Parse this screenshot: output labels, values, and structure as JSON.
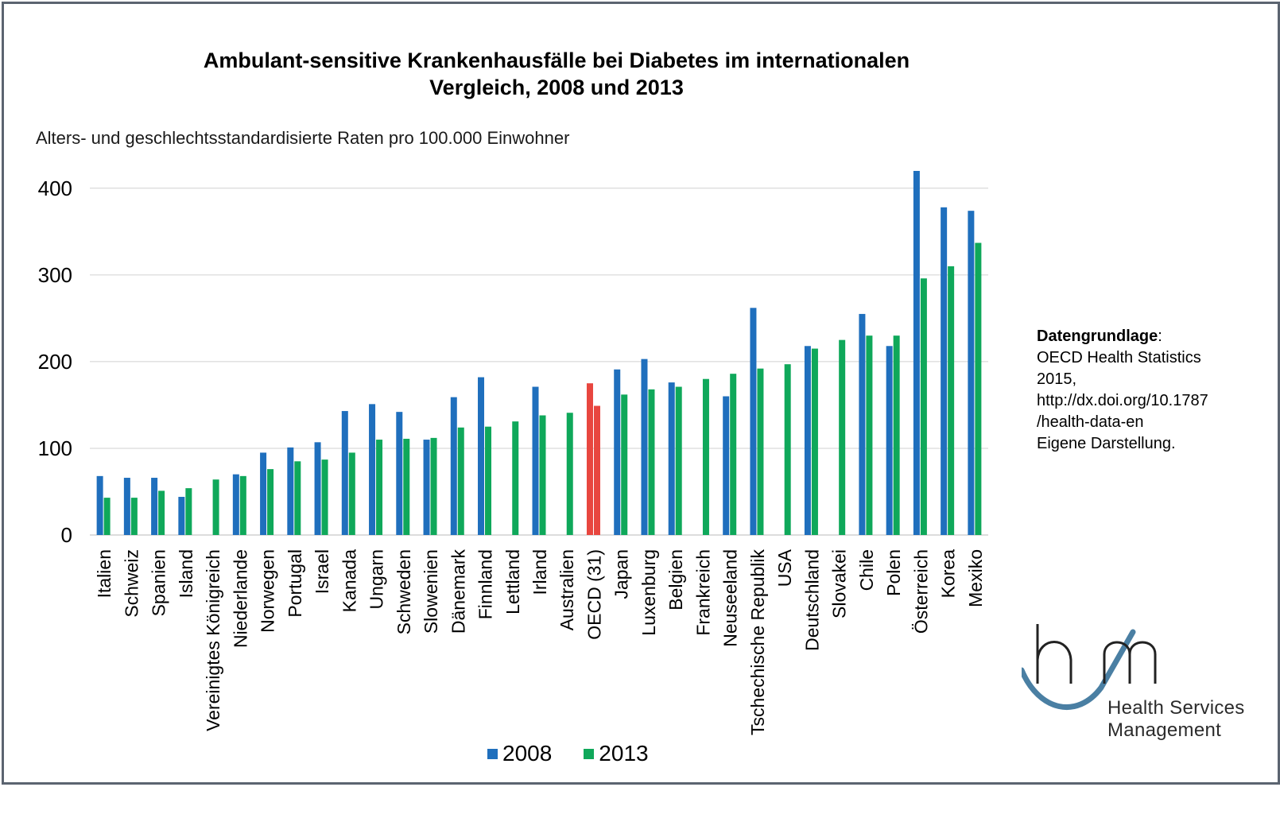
{
  "colors": {
    "series_2008": "#1f6fbd",
    "series_2013": "#0fa85a",
    "oecd_highlight": "#e8463f",
    "gridline": "#d0d0d0",
    "frame": "#5b6470",
    "logo_arc": "#4a7fa3"
  },
  "chart_data": {
    "type": "bar",
    "title": "Ambulant-sensitive Krankenhausfälle bei Diabetes im internationalen Vergleich, 2008 und 2013",
    "title_lines": [
      "Ambulant-sensitive Krankenhausfälle bei Diabetes im internationalen",
      "Vergleich, 2008 und 2013"
    ],
    "subtitle": "Alters- und geschlechtsstandardisierte Raten pro 100.000 Einwohner",
    "xlabel": "",
    "ylabel": "",
    "ylim": [
      0,
      420
    ],
    "yticks": [
      "0",
      "100",
      "200",
      "300",
      "400"
    ],
    "ytick_values": [
      0,
      100,
      200,
      300,
      400
    ],
    "grid": true,
    "legend_position": "bottom",
    "highlight_category": "OECD (31)",
    "categories": [
      "Italien",
      "Schweiz",
      "Spanien",
      "Island",
      "Vereinigtes Königreich",
      "Niederlande",
      "Norwegen",
      "Portugal",
      "Israel",
      "Kanada",
      "Ungarn",
      "Schweden",
      "Slowenien",
      "Dänemark",
      "Finnland",
      "Lettland",
      "Irland",
      "Australien",
      "OECD (31)",
      "Japan",
      "Luxenburg",
      "Belgien",
      "Frankreich",
      "Neuseeland",
      "Tschechische Republik",
      "USA",
      "Deutschland",
      "Slovakei",
      "Chile",
      "Polen",
      "Österreich",
      "Korea",
      "Mexiko"
    ],
    "series": [
      {
        "name": "2008",
        "values": [
          68,
          66,
          66,
          44,
          null,
          70,
          95,
          101,
          107,
          143,
          151,
          142,
          110,
          159,
          182,
          null,
          171,
          null,
          175,
          191,
          203,
          176,
          null,
          160,
          262,
          null,
          218,
          null,
          255,
          218,
          420,
          378,
          374
        ]
      },
      {
        "name": "2013",
        "values": [
          43,
          43,
          51,
          54,
          64,
          68,
          76,
          85,
          87,
          95,
          110,
          111,
          112,
          124,
          125,
          131,
          138,
          141,
          149,
          162,
          168,
          171,
          180,
          186,
          192,
          197,
          215,
          225,
          230,
          230,
          296,
          310,
          337
        ]
      }
    ]
  },
  "legend": {
    "items": [
      {
        "label": "2008"
      },
      {
        "label": "2013"
      }
    ]
  },
  "source": {
    "label": "Datengrundlage",
    "colon": ":",
    "lines": [
      "OECD Health Statistics",
      "2015,",
      "http://dx.doi.org/10.1787",
      "/health-data-en",
      "Eigene Darstellung."
    ]
  },
  "logo": {
    "line1": "Health Services",
    "line2": "Management"
  }
}
